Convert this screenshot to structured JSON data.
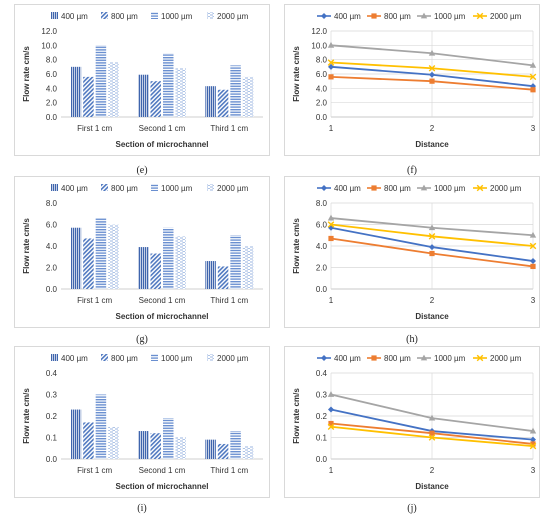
{
  "colors": {
    "s400": "#4472c4",
    "s800": "#ed7d31",
    "s1000": "#a5a5a5",
    "s2000": "#ffc000",
    "bar400": "#3f65ad",
    "bar800": "#4f78c0",
    "bar1000": "#6a8fd0",
    "bar2000": "#9bb5e0"
  },
  "chart_data": [
    {
      "id": "e",
      "type": "bar",
      "caption": "(e)",
      "categories": [
        "First 1 cm",
        "Second 1 cm",
        "Third 1 cm"
      ],
      "series": [
        {
          "name": "400 µm",
          "values": [
            7.0,
            5.9,
            4.3
          ]
        },
        {
          "name": "800 µm",
          "values": [
            5.6,
            5.0,
            3.8
          ]
        },
        {
          "name": "1000 µm",
          "values": [
            10.0,
            8.9,
            7.2
          ]
        },
        {
          "name": "2000 µm",
          "values": [
            7.6,
            6.8,
            5.6
          ]
        }
      ],
      "ylim": [
        0,
        12
      ],
      "yticks": [
        "0.0",
        "2.0",
        "4.0",
        "6.0",
        "8.0",
        "10.0",
        "12.0"
      ],
      "xlabel": "Section of microchannel",
      "ylabel": "Flow rate cm/s",
      "legend": "top"
    },
    {
      "id": "f",
      "type": "line",
      "caption": "(f)",
      "x": [
        1,
        2,
        3
      ],
      "xticks": [
        "1",
        "2",
        "3"
      ],
      "series": [
        {
          "name": "400 µm",
          "values": [
            7.0,
            5.9,
            4.3
          ]
        },
        {
          "name": "800 µm",
          "values": [
            5.6,
            5.0,
            3.8
          ]
        },
        {
          "name": "1000 µm",
          "values": [
            10.0,
            8.9,
            7.2
          ]
        },
        {
          "name": "2000 µm",
          "values": [
            7.6,
            6.8,
            5.6
          ]
        }
      ],
      "ylim": [
        0,
        12
      ],
      "yticks": [
        "0.0",
        "2.0",
        "4.0",
        "6.0",
        "8.0",
        "10.0",
        "12.0"
      ],
      "xlabel": "Distance",
      "ylabel": "Flow rate cm/s",
      "legend": "top",
      "grid": true
    },
    {
      "id": "g",
      "type": "bar",
      "caption": "(g)",
      "categories": [
        "First 1 cm",
        "Second 1 cm",
        "Third 1 cm"
      ],
      "series": [
        {
          "name": "400 µm",
          "values": [
            5.7,
            3.9,
            2.6
          ]
        },
        {
          "name": "800 µm",
          "values": [
            4.7,
            3.3,
            2.1
          ]
        },
        {
          "name": "1000 µm",
          "values": [
            6.6,
            5.7,
            5.0
          ]
        },
        {
          "name": "2000 µm",
          "values": [
            6.0,
            4.9,
            4.0
          ]
        }
      ],
      "ylim": [
        0,
        8
      ],
      "yticks": [
        "0.0",
        "2.0",
        "4.0",
        "6.0",
        "8.0"
      ],
      "xlabel": "Section of microchannel",
      "ylabel": "Flow rate cm/s",
      "legend": "top"
    },
    {
      "id": "h",
      "type": "line",
      "caption": "(h)",
      "x": [
        1,
        2,
        3
      ],
      "xticks": [
        "1",
        "2",
        "3"
      ],
      "series": [
        {
          "name": "400 µm",
          "values": [
            5.7,
            3.9,
            2.6
          ]
        },
        {
          "name": "800 µm",
          "values": [
            4.7,
            3.3,
            2.1
          ]
        },
        {
          "name": "1000 µm",
          "values": [
            6.6,
            5.7,
            5.0
          ]
        },
        {
          "name": "2000 µm",
          "values": [
            6.0,
            4.9,
            4.0
          ]
        }
      ],
      "ylim": [
        0,
        8
      ],
      "yticks": [
        "0.0",
        "2.0",
        "4.0",
        "6.0",
        "8.0"
      ],
      "xlabel": "Distance",
      "ylabel": "Flow rate cm/s",
      "legend": "top",
      "grid": true
    },
    {
      "id": "i",
      "type": "bar",
      "caption": "(i)",
      "categories": [
        "First 1 cm",
        "Second 1 cm",
        "Third 1 cm"
      ],
      "series": [
        {
          "name": "400 µm",
          "values": [
            0.23,
            0.13,
            0.09
          ]
        },
        {
          "name": "800 µm",
          "values": [
            0.17,
            0.12,
            0.07
          ]
        },
        {
          "name": "1000 µm",
          "values": [
            0.3,
            0.19,
            0.13
          ]
        },
        {
          "name": "2000 µm",
          "values": [
            0.15,
            0.1,
            0.06
          ]
        }
      ],
      "ylim": [
        0,
        0.4
      ],
      "yticks": [
        "0.0",
        "0.1",
        "0.2",
        "0.3",
        "0.4"
      ],
      "xlabel": "Section of microchannel",
      "ylabel": "Flow rate cm/s",
      "legend": "top"
    },
    {
      "id": "j",
      "type": "line",
      "caption": "(j)",
      "x": [
        1,
        2,
        3
      ],
      "xticks": [
        "1",
        "2",
        "3"
      ],
      "series": [
        {
          "name": "400 µm",
          "values": [
            0.23,
            0.13,
            0.09
          ]
        },
        {
          "name": "800 µm",
          "values": [
            0.165,
            0.12,
            0.07
          ]
        },
        {
          "name": "1000 µm",
          "values": [
            0.3,
            0.19,
            0.13
          ]
        },
        {
          "name": "2000 µm",
          "values": [
            0.15,
            0.1,
            0.06
          ]
        }
      ],
      "ylim": [
        0,
        0.4
      ],
      "yticks": [
        "0.0",
        "0.1",
        "0.2",
        "0.3",
        "0.4"
      ],
      "xlabel": "Distance",
      "ylabel": "Flow rate cm/s",
      "legend": "top",
      "grid": true
    }
  ]
}
